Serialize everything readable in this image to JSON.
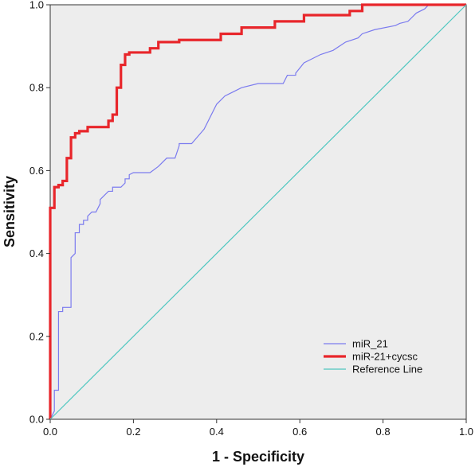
{
  "chart_data": {
    "type": "line",
    "title": "",
    "xlabel": "1 - Specificity",
    "ylabel": "Sensitivity",
    "xlim": [
      0,
      1
    ],
    "ylim": [
      0,
      1
    ],
    "xticks": [
      "0.0",
      "0.2",
      "0.4",
      "0.6",
      "0.8",
      "1.0"
    ],
    "yticks": [
      "0.0",
      "0.2",
      "0.4",
      "0.6",
      "0.8",
      "1.0"
    ],
    "grid": false,
    "legend_position": "bottom-right",
    "background": "#ededed",
    "series": [
      {
        "name": "miR_21",
        "color": "#7b7bef",
        "x": [
          0,
          0.01,
          0.01,
          0.02,
          0.02,
          0.03,
          0.03,
          0.05,
          0.05,
          0.06,
          0.06,
          0.07,
          0.07,
          0.08,
          0.08,
          0.09,
          0.09,
          0.1,
          0.11,
          0.12,
          0.12,
          0.14,
          0.15,
          0.15,
          0.17,
          0.18,
          0.18,
          0.19,
          0.19,
          0.2,
          0.21,
          0.24,
          0.26,
          0.28,
          0.3,
          0.31,
          0.31,
          0.34,
          0.37,
          0.4,
          0.42,
          0.44,
          0.46,
          0.5,
          0.54,
          0.56,
          0.57,
          0.59,
          0.59,
          0.61,
          0.63,
          0.65,
          0.68,
          0.71,
          0.74,
          0.75,
          0.78,
          0.83,
          0.84,
          0.86,
          0.87,
          0.88,
          0.9,
          0.91,
          1.0
        ],
        "y": [
          0,
          0.02,
          0.07,
          0.07,
          0.26,
          0.26,
          0.27,
          0.27,
          0.39,
          0.4,
          0.45,
          0.45,
          0.47,
          0.47,
          0.48,
          0.48,
          0.49,
          0.5,
          0.5,
          0.52,
          0.53,
          0.55,
          0.55,
          0.56,
          0.56,
          0.57,
          0.58,
          0.58,
          0.59,
          0.595,
          0.595,
          0.595,
          0.61,
          0.63,
          0.63,
          0.66,
          0.665,
          0.665,
          0.7,
          0.76,
          0.78,
          0.79,
          0.8,
          0.81,
          0.81,
          0.81,
          0.83,
          0.83,
          0.835,
          0.86,
          0.87,
          0.88,
          0.89,
          0.91,
          0.92,
          0.93,
          0.94,
          0.95,
          0.955,
          0.96,
          0.97,
          0.98,
          0.99,
          1.0,
          1.0
        ]
      },
      {
        "name": "miR-21+cycsc",
        "color": "#e8262b",
        "x": [
          0,
          0,
          0.01,
          0.01,
          0.02,
          0.02,
          0.03,
          0.03,
          0.04,
          0.04,
          0.05,
          0.05,
          0.06,
          0.06,
          0.07,
          0.07,
          0.09,
          0.09,
          0.14,
          0.14,
          0.15,
          0.15,
          0.16,
          0.16,
          0.17,
          0.17,
          0.18,
          0.18,
          0.19,
          0.19,
          0.24,
          0.24,
          0.26,
          0.26,
          0.31,
          0.31,
          0.41,
          0.41,
          0.46,
          0.46,
          0.54,
          0.54,
          0.61,
          0.61,
          0.72,
          0.72,
          0.75,
          0.75,
          1.0
        ],
        "y": [
          0,
          0.51,
          0.51,
          0.56,
          0.56,
          0.565,
          0.565,
          0.575,
          0.575,
          0.63,
          0.63,
          0.68,
          0.68,
          0.69,
          0.69,
          0.695,
          0.695,
          0.705,
          0.705,
          0.72,
          0.72,
          0.735,
          0.735,
          0.8,
          0.8,
          0.855,
          0.855,
          0.88,
          0.88,
          0.885,
          0.885,
          0.895,
          0.895,
          0.91,
          0.91,
          0.915,
          0.915,
          0.93,
          0.93,
          0.945,
          0.945,
          0.96,
          0.96,
          0.975,
          0.975,
          0.985,
          0.985,
          1.0,
          1.0
        ]
      },
      {
        "name": "Reference Line",
        "color": "#4fc7c0",
        "x": [
          0,
          1
        ],
        "y": [
          0,
          1
        ]
      }
    ]
  }
}
